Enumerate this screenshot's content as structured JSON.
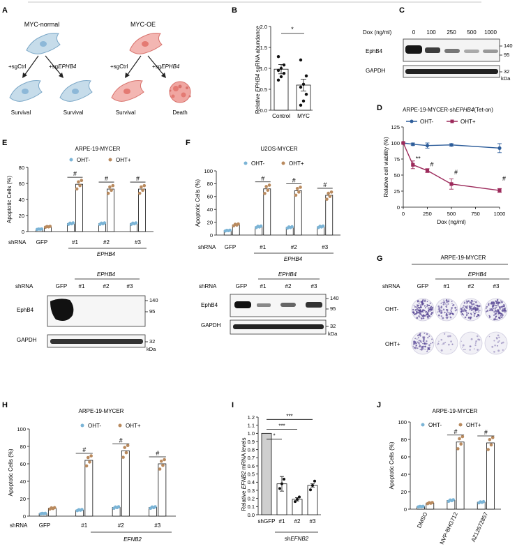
{
  "colors": {
    "ohtMinus": "#7bb4d6",
    "ohtPlus": "#b98a5e",
    "lineMinus": "#2d5d9a",
    "linePlus": "#9c2a5b",
    "bandDark": "#222222",
    "colonyPurple": "#5a4a96"
  },
  "labels": {
    "A": "A",
    "B": "B",
    "C": "C",
    "D": "D",
    "E": "E",
    "F": "F",
    "G": "G",
    "H": "H",
    "I": "I",
    "J": "J"
  },
  "panelA": {
    "left_title": "MYC-normal",
    "right_title": "MYC-OE",
    "sgctrl": "+sgCtrl",
    "sg_prefix": "+sg",
    "sg_gene": "EPHB4",
    "survival": "Survival",
    "death": "Death"
  },
  "panelB": {
    "ylabel_prefix": "Relative ",
    "ylabel_gene": "EPHB4",
    "ylabel_suffix": " sgRNA abundance",
    "sig": "*"
  },
  "panelC": {
    "dox_label": "Dox (ng/ml)",
    "doses": [
      "0",
      "100",
      "250",
      "500",
      "1000"
    ],
    "row1": "EphB4",
    "row2": "GAPDH",
    "mw": [
      "140",
      "95",
      "32"
    ],
    "kda": "kDa"
  },
  "panelD": {
    "title_prefix": "ARPE-19-MYCER-sh",
    "title_gene": "EPHB4",
    "title_suffix": "(Tet-on)",
    "legend_minus": "OHT-",
    "legend_plus": "OHT+",
    "sig": [
      "**",
      "#",
      "#",
      "#"
    ]
  },
  "panelE": {
    "title": "ARPE-19-MYCER",
    "legend_minus": "OHT-",
    "legend_plus": "OHT+",
    "shrna": "shRNA",
    "gfp": "GFP",
    "hash": "#",
    "gene": "EPHB4",
    "wb_row1": "EphB4",
    "wb_row2": "GAPDH",
    "mw": [
      "140",
      "95",
      "32"
    ],
    "kda": "kDa"
  },
  "panelF": {
    "title": "U2OS-MYCER",
    "legend_minus": "OHT-",
    "legend_plus": "OHT+",
    "shrna": "shRNA",
    "gfp": "GFP",
    "hash": "#",
    "gene": "EPHB4",
    "wb_row1": "EphB4",
    "wb_row2": "GAPDH",
    "mw": [
      "140",
      "95",
      "32"
    ],
    "kda": "kDa"
  },
  "panelG": {
    "title": "ARPE-19-MYCER",
    "gene": "EPHB4",
    "shrna": "shRNA",
    "cols": [
      "GFP",
      "#1",
      "#2",
      "#3"
    ],
    "rows": [
      "OHT-",
      "OHT+"
    ],
    "colony_density": [
      [
        0.85,
        0.55,
        0.7,
        0.8
      ],
      [
        0.55,
        0.12,
        0.12,
        0.12
      ]
    ]
  },
  "panelH": {
    "title": "ARPE-19-MYCER",
    "legend_minus": "OHT-",
    "legend_plus": "OHT+",
    "shrna": "shRNA",
    "gfp": "GFP",
    "hash": "#",
    "gene": "EFNB2"
  },
  "panelI": {
    "ylabel_prefix": "Relative ",
    "ylabel_gene": "EFNB2",
    "ylabel_suffix": " mRNA levels",
    "sh_prefix": "sh",
    "gene": "EFNB2",
    "sigs": [
      "*",
      "***",
      "***"
    ]
  },
  "panelJ": {
    "title": "ARPE-19-MYCER",
    "legend_minus": "OHT-",
    "legend_plus": "OHT+",
    "hash": "#"
  },
  "chart_data": [
    {
      "id": "B",
      "type": "bar",
      "categories": [
        "Control",
        "MYC"
      ],
      "values": [
        0.98,
        0.6
      ],
      "errors": [
        0.11,
        0.14
      ],
      "points": [
        [
          0.72,
          0.8,
          0.88,
          0.95,
          1.0,
          1.08,
          1.28
        ],
        [
          0.12,
          0.22,
          0.38,
          0.55,
          0.62,
          0.82,
          1.2
        ]
      ],
      "ylim": [
        0,
        2.0
      ],
      "yticks": [
        "0.0",
        "0.5",
        "1.0",
        "1.5",
        "2.0"
      ],
      "ylabel": "Relative EPHB4 sgRNA abundance"
    },
    {
      "id": "D",
      "type": "line",
      "x": [
        0,
        100,
        250,
        500,
        1000
      ],
      "series": [
        {
          "name": "OHT-",
          "values": [
            100,
            98,
            96,
            97,
            92
          ],
          "errors": [
            0,
            2,
            4,
            2,
            7
          ]
        },
        {
          "name": "OHT+",
          "values": [
            100,
            66,
            57,
            36,
            26
          ],
          "errors": [
            0,
            6,
            3,
            8,
            3
          ]
        }
      ],
      "xlim": [
        0,
        1000
      ],
      "ylim": [
        0,
        125
      ],
      "xticks": [
        "0",
        "250",
        "500",
        "750",
        "1000"
      ],
      "yticks": [
        "0",
        "25",
        "50",
        "75",
        "100",
        "125"
      ],
      "xlabel": "Dox (ng/ml)",
      "ylabel": "Relative cell viability (%)"
    },
    {
      "id": "E",
      "type": "bar",
      "categories": [
        "GFP",
        "#1",
        "#2",
        "#3"
      ],
      "series": [
        {
          "name": "OHT-",
          "values": [
            3,
            10,
            10,
            10
          ]
        },
        {
          "name": "OHT+",
          "values": [
            6,
            59,
            53,
            53
          ]
        }
      ],
      "ylim": [
        0,
        80
      ],
      "yticks": [
        "0",
        "20",
        "40",
        "60",
        "80"
      ],
      "ylabel": "Apoptotic Cells (%)"
    },
    {
      "id": "F",
      "type": "bar",
      "categories": [
        "GFP",
        "#1",
        "#2",
        "#3"
      ],
      "series": [
        {
          "name": "OHT-",
          "values": [
            7,
            13,
            12,
            13
          ]
        },
        {
          "name": "OHT+",
          "values": [
            16,
            72,
            69,
            62
          ]
        }
      ],
      "ylim": [
        0,
        100
      ],
      "yticks": [
        "0",
        "20",
        "40",
        "60",
        "80",
        "100"
      ],
      "ylabel": "Apoptotic Cells (%)"
    },
    {
      "id": "H",
      "type": "bar",
      "categories": [
        "GFP",
        "#1",
        "#2",
        "#3"
      ],
      "series": [
        {
          "name": "OHT-",
          "values": [
            3,
            7,
            10,
            10
          ]
        },
        {
          "name": "OHT+",
          "values": [
            9,
            64,
            75,
            60
          ]
        }
      ],
      "ylim": [
        0,
        100
      ],
      "yticks": [
        "0",
        "20",
        "40",
        "60",
        "80",
        "100"
      ],
      "ylabel": "Apoptotic Cells (%)"
    },
    {
      "id": "I",
      "type": "bar",
      "categories": [
        "shGFP",
        "#1",
        "#2",
        "#3"
      ],
      "values": [
        1.0,
        0.38,
        0.19,
        0.36
      ],
      "errors": [
        0,
        0.09,
        0.02,
        0.02
      ],
      "ylim": [
        0,
        1.2
      ],
      "yticks": [
        "0.0",
        "0.1",
        "0.2",
        "0.3",
        "0.4",
        "0.5",
        "0.6",
        "0.7",
        "0.8",
        "0.9",
        "1.0",
        "1.1",
        "1.2"
      ],
      "ylabel": "Relative EFNB2 mRNA levels"
    },
    {
      "id": "J",
      "type": "bar",
      "categories": [
        "DMSO",
        "NVP-BHG712",
        "AZ12672857"
      ],
      "series": [
        {
          "name": "OHT-",
          "values": [
            3,
            10,
            8
          ]
        },
        {
          "name": "OHT+",
          "values": [
            7,
            77,
            76
          ]
        }
      ],
      "ylim": [
        0,
        100
      ],
      "yticks": [
        "0",
        "20",
        "40",
        "60",
        "80",
        "100"
      ],
      "ylabel": "Apoptotic Cells (%)"
    }
  ]
}
